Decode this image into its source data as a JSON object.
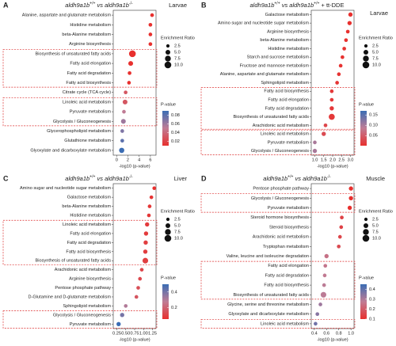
{
  "chart_data": [
    {
      "type": "bubble",
      "panel": "A",
      "title": [
        "aldh9a1b",
        "+/+",
        " vs aldh9a1b",
        "-/-"
      ],
      "subtitle": "Larvae",
      "categories": [
        "Alanine, aspartate and glutamate metabolism",
        "Histidine metabolism",
        "beta-Alanine metabolism",
        "Arginine biosynthesis",
        "Biosynthesis of unsaturated fatty acids",
        "Fatty acid elongation",
        "Fatty acid degradation",
        "Fatty acid biosynthesis",
        "Citrate cycle (TCA cycle)",
        "Linoleic acid metabolism",
        "Pyruvate metabolism",
        "Glycolysis / Gluconeogenesis",
        "Glycerophospholipid metabolism",
        "Glutathione metabolism",
        "Glyoxylate and dicarboxylate metabolism"
      ],
      "values": [
        6.3,
        6.0,
        6.0,
        6.0,
        2.8,
        2.5,
        2.3,
        2.2,
        1.6,
        1.5,
        1.3,
        1.2,
        1.0,
        1.0,
        0.9
      ],
      "sizes": [
        3,
        3,
        3,
        3,
        10,
        5,
        3,
        3,
        3,
        5,
        3,
        5,
        3,
        3,
        6
      ],
      "pvalues": [
        0.01,
        0.01,
        0.01,
        0.01,
        0.01,
        0.01,
        0.01,
        0.01,
        0.03,
        0.03,
        0.05,
        0.06,
        0.07,
        0.08,
        0.09
      ],
      "xlim": [
        -0.6,
        7
      ],
      "xticks": [
        0,
        2,
        4,
        6
      ],
      "xlabel": "-log10 (p-value)",
      "size_label": "Enrichment Ratio",
      "size_ticks": [
        {
          "value": 2.5,
          "label": "2.5"
        },
        {
          "value": 5,
          "label": "5.0"
        },
        {
          "value": 7.5,
          "label": "7.5"
        },
        {
          "value": 10,
          "label": "10.0"
        }
      ],
      "color_label": "P-value",
      "clim": [
        0.01,
        0.09
      ],
      "cticks": [
        0.02,
        0.04,
        0.06,
        0.08
      ]
    },
    {
      "type": "bubble",
      "panel": "B",
      "title": [
        "aldh9a1b",
        "+/+",
        " vs aldh9a1b",
        "+/+",
        " + tt-DDE"
      ],
      "subtitle": "Larvae",
      "categories": [
        "Galactose metabolism",
        "Amino sugar and nucleotide sugar metabolism",
        "Arginine biosynthesis",
        "beta-Alanine metabolism",
        "Histidine metabolism",
        "Starch and sucrose metabolism",
        "Fructose and mannose metabolism",
        "Alanine, aspartate and glutamate metabolism",
        "Sphingolipid metabolism",
        "Fatty acid biosynthesis",
        "Fatty acid elongation",
        "Fatty acid degradation",
        "Biosynthesis of unsaturated fatty acids",
        "Arachidonic acid metabolism",
        "Linoleic acid metabolism",
        "Pyruvate metabolism",
        "Glycolysis / Gluconeogenesis"
      ],
      "values": [
        3.0,
        2.95,
        2.85,
        2.75,
        2.65,
        2.55,
        2.45,
        2.35,
        2.25,
        1.95,
        1.95,
        1.95,
        1.95,
        1.6,
        1.5,
        1.0,
        1.0
      ],
      "sizes": [
        4,
        4,
        3,
        3,
        3,
        3,
        3,
        3,
        3,
        3,
        3,
        4,
        8,
        3,
        4,
        3,
        4
      ],
      "pvalues": [
        0.001,
        0.001,
        0.002,
        0.002,
        0.003,
        0.003,
        0.004,
        0.005,
        0.006,
        0.01,
        0.01,
        0.01,
        0.01,
        0.025,
        0.03,
        0.1,
        0.1
      ],
      "xlim": [
        0.8,
        3.2
      ],
      "xticks": [
        {
          "value": 1,
          "label": "1.0"
        },
        1.5,
        {
          "value": 2,
          "label": "2.0"
        },
        2.5,
        {
          "value": 3,
          "label": "3.0"
        }
      ],
      "xlabel": "-log10 (p-value)",
      "size_label": "Enrichment Ratio",
      "size_ticks": [
        {
          "value": 2.5,
          "label": "2.5"
        },
        {
          "value": 5,
          "label": "5.0"
        },
        {
          "value": 7.5,
          "label": "7.5"
        },
        {
          "value": 10,
          "label": "10.0"
        }
      ],
      "color_label": "P-value",
      "clim": [
        0.001,
        0.17
      ],
      "cticks": [
        {
          "value": 0.05,
          "label": "0.05"
        },
        {
          "value": 0.1,
          "label": "0.10"
        },
        {
          "value": 0.15,
          "label": "0.15"
        }
      ]
    },
    {
      "type": "bubble",
      "panel": "C",
      "title": [
        "aldh9a1b",
        "+/+",
        " vs aldh9a1b",
        "-/-"
      ],
      "subtitle": "Liver",
      "categories": [
        "Amino sugar and nucleotide sugar metabolism",
        "Galactose metabolism",
        "beta-Alanine metabolism",
        "Histidine metabolism",
        "Linoleic acid metabolism",
        "Fatty acid elongation",
        "Fatty acid degradation",
        "Fatty acid biosynthesis",
        "Biosynthesis of unsaturated fatty acids",
        "Arachidonic acid metabolism",
        "Arginine biosynthesis",
        "Pentose phosphate pathway",
        "D-Glutamine and D-glutamate metabolism",
        "Sphingolipid metabolism",
        "Glycolysis / Gluconeogenesis",
        "Pyruvate metabolism"
      ],
      "values": [
        1.3,
        1.22,
        1.17,
        1.15,
        1.1,
        1.07,
        1.06,
        1.05,
        1.05,
        0.95,
        0.9,
        0.85,
        0.8,
        0.5,
        0.4,
        0.3
      ],
      "sizes": [
        3,
        3,
        3,
        3,
        4,
        4,
        4,
        4,
        7,
        3,
        3,
        3,
        3,
        3,
        4,
        4
      ],
      "pvalues": [
        0.05,
        0.06,
        0.07,
        0.07,
        0.08,
        0.08,
        0.09,
        0.09,
        0.09,
        0.11,
        0.12,
        0.14,
        0.16,
        0.3,
        0.4,
        0.5
      ],
      "xlim": [
        0.15,
        1.35
      ],
      "xticks": [
        0.25,
        {
          "value": 0.5,
          "label": "0.50"
        },
        0.75,
        {
          "value": 1,
          "label": "1.00"
        },
        1.25
      ],
      "xlabel": "-log10 (p-value)",
      "size_label": "Enrichment Ratio",
      "size_ticks": [
        {
          "value": 2.5,
          "label": "2.5"
        },
        {
          "value": 5,
          "label": "5.0"
        },
        {
          "value": 7.5,
          "label": "7.5"
        },
        {
          "value": 10,
          "label": "10.0"
        }
      ],
      "color_label": "P-value",
      "clim": [
        0.05,
        0.5
      ],
      "cticks": [
        0.2,
        0.4
      ]
    },
    {
      "type": "bubble",
      "panel": "D",
      "title": [
        "aldh9a1b",
        "+/+",
        " vs aldh9a1b",
        "-/-"
      ],
      "subtitle": "Muscle",
      "categories": [
        "Pentose phosphate pathway",
        "Glycolysis / Gluconeogenesis",
        "Pyruvate metabolism",
        "Steroid hormone biosynthesis",
        "Steroid biosynthesis",
        "Arachidonic acid metabolism",
        "Tryptophan metabolism",
        "Valine, leucine and isoleucine degradation",
        "Fatty acid elongation",
        "Fatty acid degradation",
        "Fatty acid biosynthesis",
        "Biosynthesis of unsaturated fatty acids",
        "Glycine, serine and threonine metabolism",
        "Glyoxylate and dicarboxylate metabolism",
        "Linoleic acid metabolism"
      ],
      "values": [
        1.0,
        1.0,
        0.98,
        0.85,
        0.84,
        0.82,
        0.8,
        0.6,
        0.58,
        0.57,
        0.56,
        0.55,
        0.5,
        0.45,
        0.42
      ],
      "sizes": [
        4,
        4,
        4,
        3,
        3,
        3,
        3,
        4,
        3,
        3,
        3,
        7,
        3,
        3,
        3
      ],
      "pvalues": [
        0.1,
        0.1,
        0.1,
        0.14,
        0.14,
        0.15,
        0.16,
        0.25,
        0.26,
        0.27,
        0.28,
        0.28,
        0.32,
        0.35,
        0.38
      ],
      "xlim": [
        0.35,
        1.05
      ],
      "xticks": [
        0.4,
        0.6,
        0.8,
        {
          "value": 1,
          "label": "1.0"
        }
      ],
      "xlabel": "-log10 (p-value)",
      "size_label": "Enrichment Ratio",
      "size_ticks": [
        {
          "value": 2.5,
          "label": "2.5"
        },
        {
          "value": 5,
          "label": "5.0"
        },
        {
          "value": 7.5,
          "label": "7.5"
        },
        {
          "value": 10,
          "label": "10.0"
        }
      ],
      "color_label": "P-value",
      "clim": [
        0.1,
        0.45
      ],
      "cticks": [
        0.1,
        0.2,
        0.3,
        0.4
      ]
    }
  ]
}
